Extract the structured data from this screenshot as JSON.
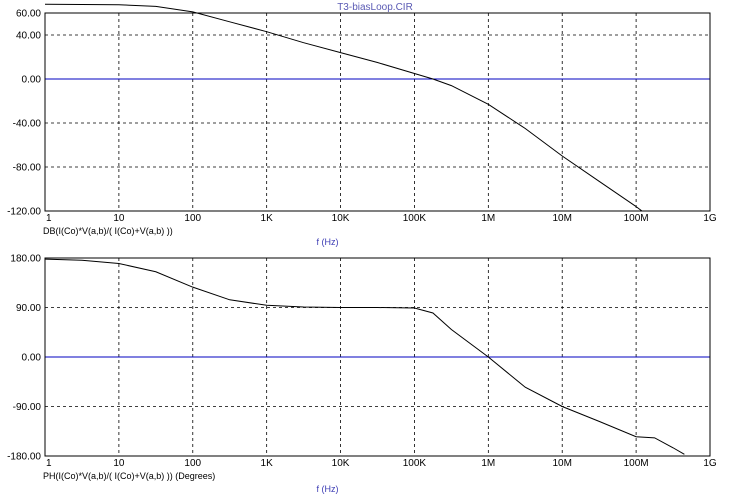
{
  "title": "T3-biasLoop.CIR",
  "colors": {
    "title": "#5a5ab4",
    "zero_line": "#0000c0",
    "curve": "#000000",
    "xlabel": "#3c3cb4",
    "background": "#ffffff"
  },
  "chart_data": [
    {
      "type": "line",
      "scale_x": "log",
      "grid": true,
      "xlim": [
        1,
        1000000000
      ],
      "ylim": [
        -120,
        60
      ],
      "x_ticks": [
        1,
        10,
        100,
        1000,
        10000,
        100000,
        1000000,
        10000000,
        100000000,
        1000000000
      ],
      "x_tick_labels": [
        "1",
        "10",
        "100",
        "1K",
        "10K",
        "100K",
        "1M",
        "10M",
        "100M",
        "1G"
      ],
      "y_ticks": [
        60,
        40,
        0,
        -40,
        -80,
        -120
      ],
      "y_tick_labels": [
        "60.00",
        "40.00",
        "0.00",
        "-40.00",
        "-80.00",
        "-120.00"
      ],
      "expression": "DB(I(Co)*V(a,b)/( I(Co)+V(a,b) ))",
      "xlabel": "f (Hz)",
      "reference_line": 0,
      "series": [
        {
          "x": [
            1,
            10,
            31.6,
            100,
            316,
            1000,
            3160,
            10000,
            31600,
            100000,
            178000,
            316000,
            1000000,
            3160000,
            10000000,
            31600000,
            100000000,
            120000000
          ],
          "y": [
            68,
            67.5,
            66,
            61,
            52,
            43,
            33,
            24,
            15,
            5,
            0,
            -6,
            -23,
            -45,
            -70,
            -93,
            -116,
            -120
          ]
        }
      ]
    },
    {
      "type": "line",
      "scale_x": "log",
      "grid": true,
      "xlim": [
        1,
        1000000000
      ],
      "ylim": [
        -180,
        180
      ],
      "x_ticks": [
        1,
        10,
        100,
        1000,
        10000,
        100000,
        1000000,
        10000000,
        100000000,
        1000000000
      ],
      "x_tick_labels": [
        "1",
        "10",
        "100",
        "1K",
        "10K",
        "100K",
        "1M",
        "10M",
        "100M",
        "1G"
      ],
      "y_ticks": [
        180,
        90,
        0,
        -90,
        -180
      ],
      "y_tick_labels": [
        "180.00",
        "90.00",
        "0.00",
        "-90.00",
        "-180.00"
      ],
      "expression": "PH(I(Co)*V(a,b)/( I(Co)+V(a,b) )) (Degrees)",
      "xlabel": "f (Hz)",
      "reference_line": 0,
      "series": [
        {
          "x": [
            1,
            3.16,
            10,
            31.6,
            100,
            316,
            1000,
            3160,
            10000,
            31600,
            100000,
            178000,
            316000,
            1000000,
            3160000,
            10000000,
            31600000,
            100000000,
            178000000,
            316000000,
            450000000
          ],
          "y": [
            178,
            176,
            170,
            155,
            127,
            104,
            94,
            91,
            90,
            90,
            89,
            80,
            50,
            0,
            -55,
            -90,
            -117,
            -145,
            -147,
            -165,
            -177
          ]
        }
      ]
    }
  ]
}
